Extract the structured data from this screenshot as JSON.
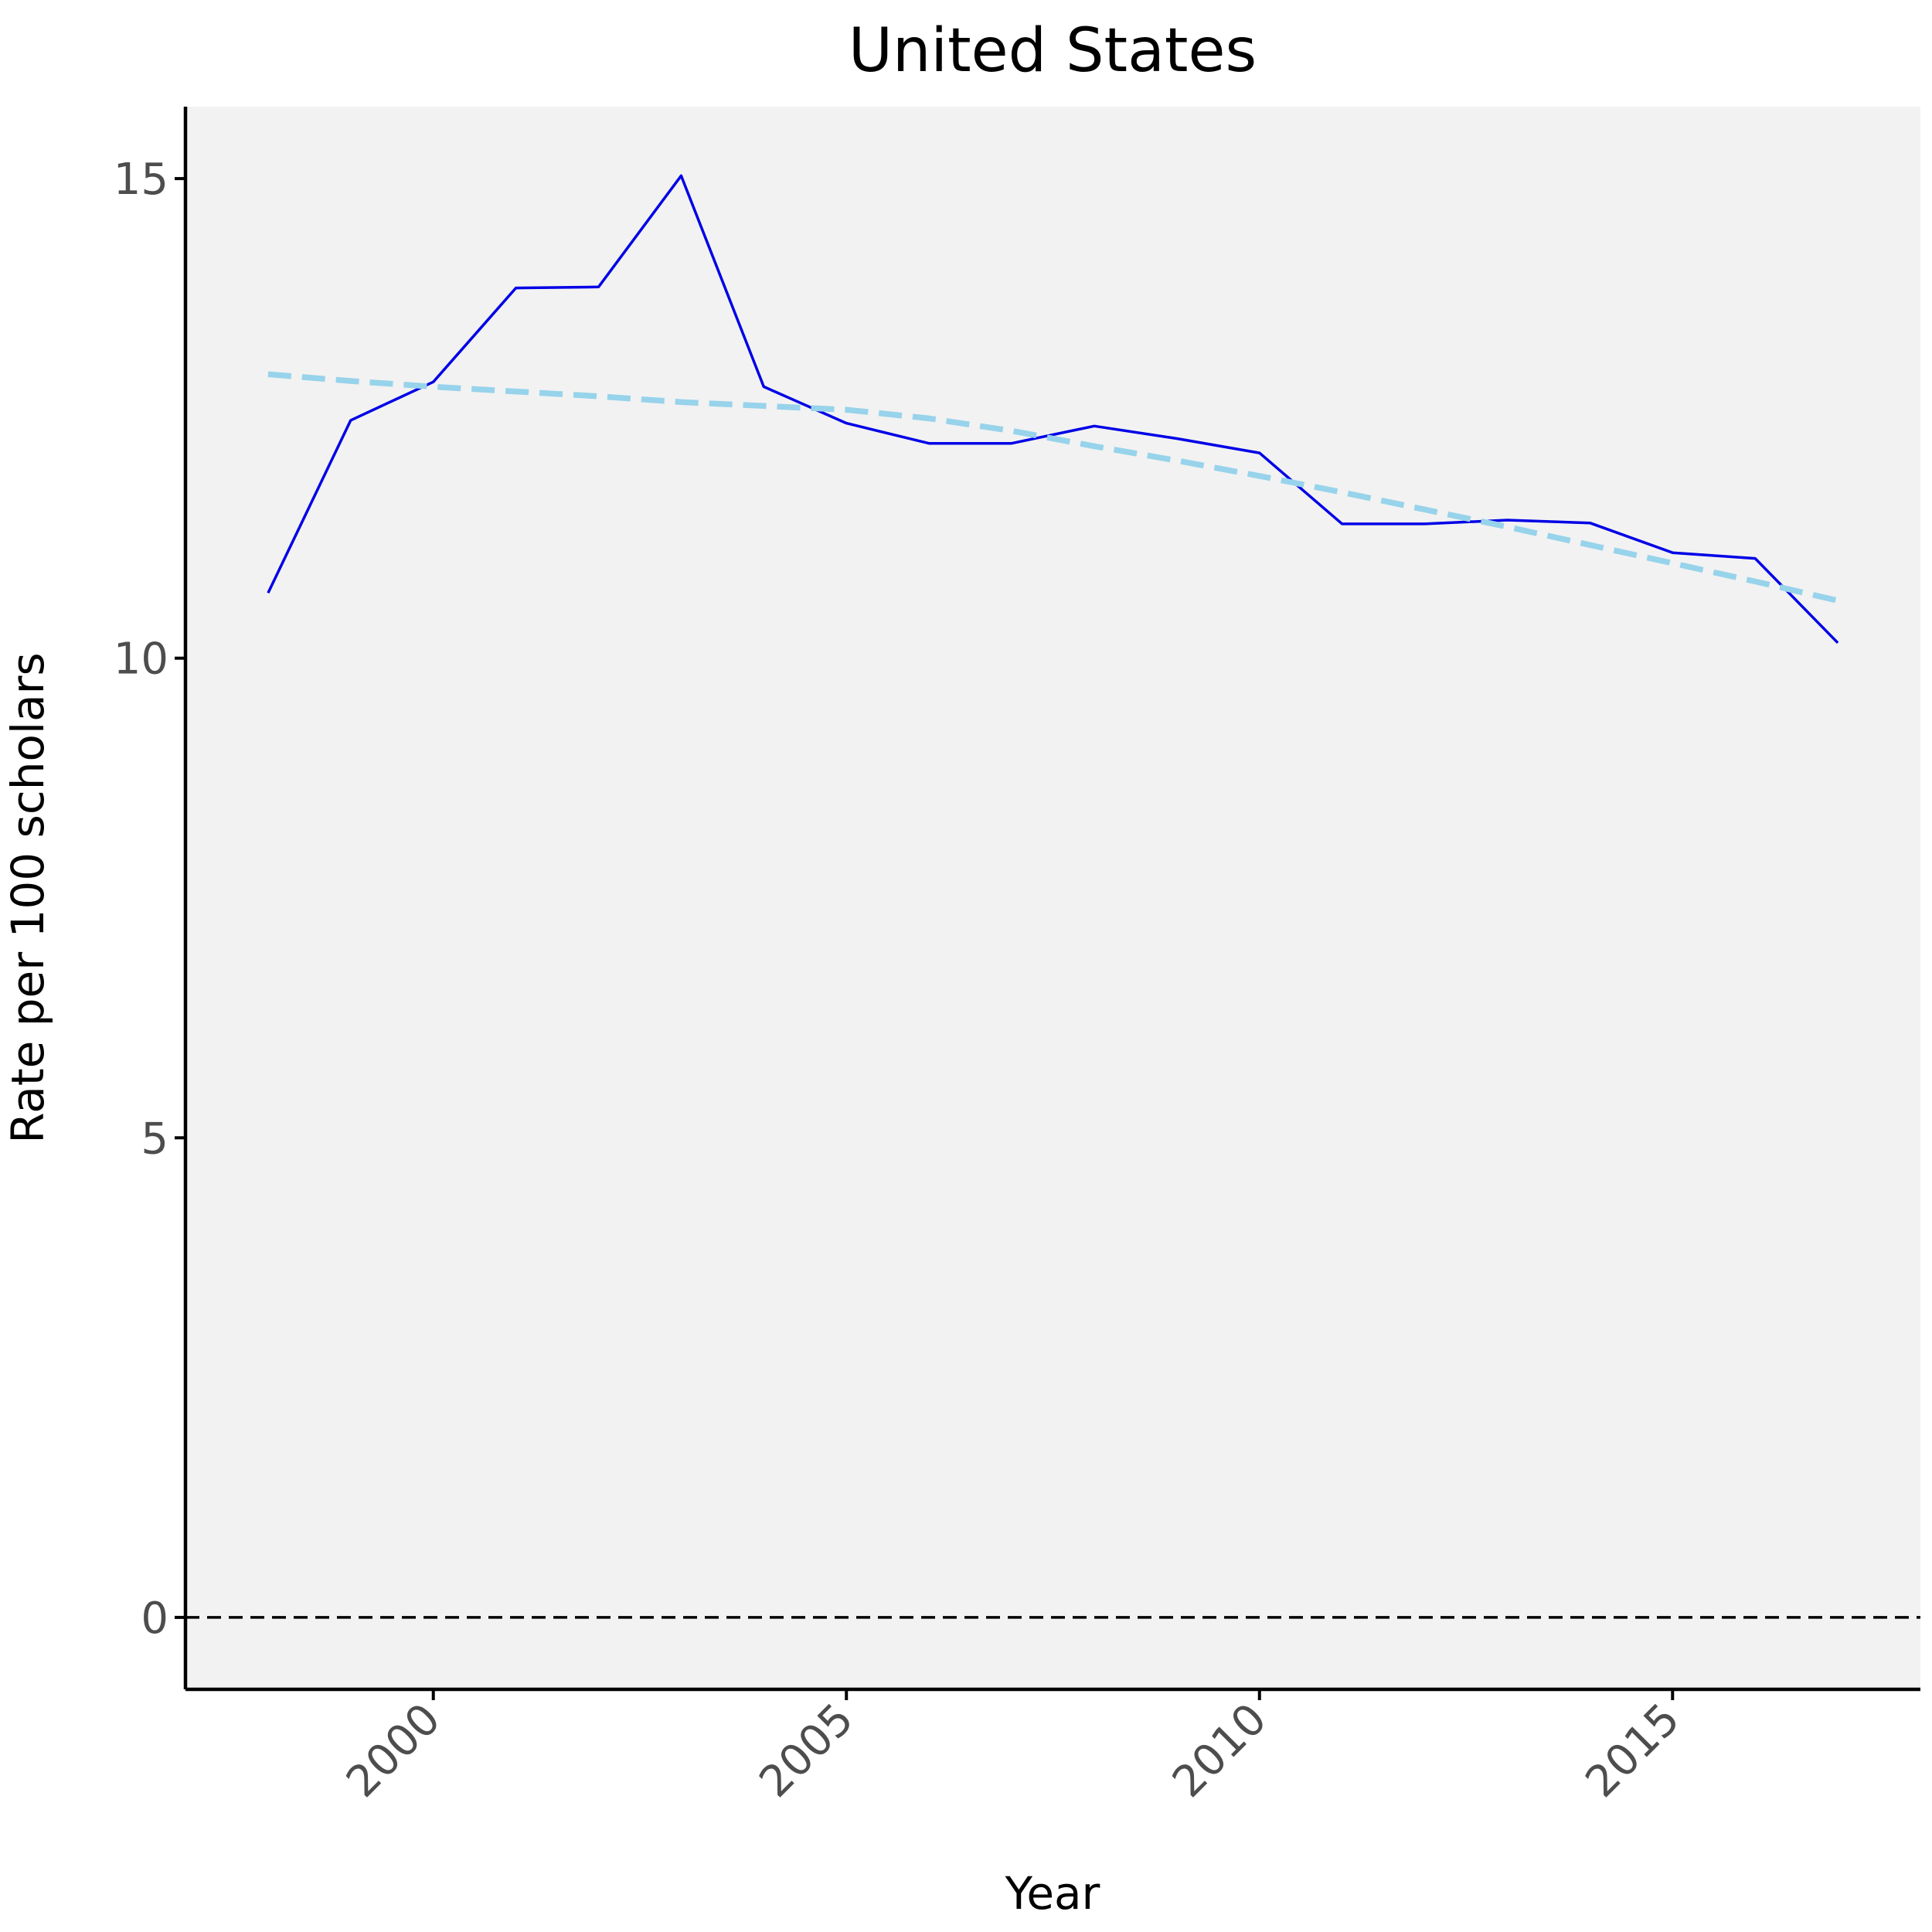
{
  "chart_data": {
    "type": "line",
    "title": "United States",
    "xlabel": "Year",
    "ylabel": "Rate per 100 scholars",
    "xlim": [
      1997,
      2018
    ],
    "ylim": [
      -0.75,
      15.75
    ],
    "x_ticks": [
      2000,
      2005,
      2010,
      2015
    ],
    "y_ticks": [
      0,
      5,
      10,
      15
    ],
    "grid": false,
    "legend": "none",
    "reference_line": {
      "y": 0,
      "style": "dashed",
      "color": "#000000"
    },
    "series": [
      {
        "style": "solid",
        "color": "#0000e6",
        "x": [
          1998,
          1999,
          2000,
          2001,
          2002,
          2003,
          2004,
          2005,
          2006,
          2007,
          2008,
          2009,
          2010,
          2011,
          2012,
          2013,
          2014,
          2015,
          2016,
          2017
        ],
        "y": [
          10.68,
          12.48,
          12.88,
          13.86,
          13.87,
          15.03,
          12.83,
          12.45,
          12.24,
          12.24,
          12.42,
          12.29,
          12.14,
          11.4,
          11.4,
          11.44,
          11.41,
          11.1,
          11.04,
          10.16
        ]
      },
      {
        "style": "dashed",
        "color": "#97d3eb",
        "x": [
          1998,
          1999,
          2000,
          2001,
          2002,
          2003,
          2004,
          2005,
          2006,
          2007,
          2008,
          2009,
          2010,
          2011,
          2012,
          2013,
          2014,
          2015,
          2016,
          2017
        ],
        "y": [
          12.96,
          12.89,
          12.83,
          12.78,
          12.73,
          12.67,
          12.63,
          12.59,
          12.5,
          12.37,
          12.21,
          12.06,
          11.9,
          11.73,
          11.55,
          11.37,
          11.18,
          10.99,
          10.8,
          10.6
        ]
      }
    ]
  }
}
